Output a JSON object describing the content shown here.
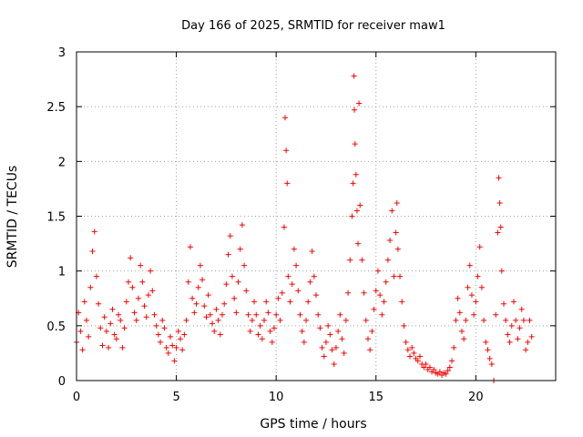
{
  "chart_data": {
    "type": "scatter",
    "title": "Day 166 of 2025, SRMTID for receiver maw1",
    "xlabel": "GPS time / hours",
    "ylabel": "SRMTID / TECUs",
    "xlim": [
      0,
      24
    ],
    "ylim": [
      0,
      3
    ],
    "xticks": [
      0,
      5,
      10,
      15,
      20
    ],
    "xtick_labels": [
      "0",
      "5",
      "10",
      "15",
      "20"
    ],
    "yticks": [
      0,
      0.5,
      1,
      1.5,
      2,
      2.5,
      3
    ],
    "ytick_labels": [
      "0",
      "0.5",
      "1",
      "1.5",
      "2",
      "2.5",
      "3"
    ],
    "grid": true,
    "marker": "plus",
    "color": "#ff0000",
    "series": [
      {
        "name": "SRMTID",
        "points": [
          [
            0.0,
            0.35
          ],
          [
            0.1,
            0.62
          ],
          [
            0.2,
            0.45
          ],
          [
            0.3,
            0.28
          ],
          [
            0.4,
            0.72
          ],
          [
            0.5,
            0.55
          ],
          [
            0.6,
            0.4
          ],
          [
            0.7,
            0.85
          ],
          [
            0.8,
            1.18
          ],
          [
            0.9,
            1.36
          ],
          [
            1.0,
            0.95
          ],
          [
            1.1,
            0.7
          ],
          [
            1.2,
            0.48
          ],
          [
            1.3,
            0.32
          ],
          [
            1.4,
            0.58
          ],
          [
            1.5,
            0.45
          ],
          [
            1.6,
            0.3
          ],
          [
            1.7,
            0.52
          ],
          [
            1.8,
            0.65
          ],
          [
            1.9,
            0.42
          ],
          [
            2.0,
            0.38
          ],
          [
            2.1,
            0.6
          ],
          [
            2.2,
            0.55
          ],
          [
            2.3,
            0.3
          ],
          [
            2.4,
            0.48
          ],
          [
            2.5,
            0.72
          ],
          [
            2.6,
            0.9
          ],
          [
            2.7,
            1.12
          ],
          [
            2.8,
            0.85
          ],
          [
            2.9,
            0.62
          ],
          [
            3.0,
            0.55
          ],
          [
            3.1,
            0.75
          ],
          [
            3.2,
            1.05
          ],
          [
            3.3,
            0.9
          ],
          [
            3.4,
            0.68
          ],
          [
            3.5,
            0.58
          ],
          [
            3.6,
            0.78
          ],
          [
            3.7,
            1.0
          ],
          [
            3.8,
            0.82
          ],
          [
            3.9,
            0.6
          ],
          [
            4.0,
            0.5
          ],
          [
            4.1,
            0.42
          ],
          [
            4.2,
            0.35
          ],
          [
            4.3,
            0.55
          ],
          [
            4.4,
            0.48
          ],
          [
            4.5,
            0.3
          ],
          [
            4.6,
            0.25
          ],
          [
            4.7,
            0.4
          ],
          [
            4.8,
            0.32
          ],
          [
            4.9,
            0.18
          ],
          [
            5.0,
            0.3
          ],
          [
            5.1,
            0.45
          ],
          [
            5.2,
            0.38
          ],
          [
            5.3,
            0.28
          ],
          [
            5.4,
            0.42
          ],
          [
            5.5,
            0.55
          ],
          [
            5.6,
            0.9
          ],
          [
            5.7,
            1.22
          ],
          [
            5.8,
            0.75
          ],
          [
            5.9,
            0.62
          ],
          [
            6.0,
            0.7
          ],
          [
            6.1,
            0.85
          ],
          [
            6.2,
            1.05
          ],
          [
            6.3,
            0.92
          ],
          [
            6.4,
            0.68
          ],
          [
            6.5,
            0.58
          ],
          [
            6.6,
            0.78
          ],
          [
            6.7,
            0.6
          ],
          [
            6.8,
            0.52
          ],
          [
            6.9,
            0.45
          ],
          [
            7.0,
            0.65
          ],
          [
            7.1,
            0.55
          ],
          [
            7.2,
            0.42
          ],
          [
            7.3,
            0.6
          ],
          [
            7.4,
            0.7
          ],
          [
            7.5,
            0.88
          ],
          [
            7.6,
            1.15
          ],
          [
            7.7,
            1.32
          ],
          [
            7.8,
            0.95
          ],
          [
            7.9,
            0.75
          ],
          [
            8.0,
            0.62
          ],
          [
            8.1,
            0.9
          ],
          [
            8.2,
            1.2
          ],
          [
            8.3,
            1.42
          ],
          [
            8.4,
            1.05
          ],
          [
            8.5,
            0.82
          ],
          [
            8.6,
            0.6
          ],
          [
            8.7,
            0.45
          ],
          [
            8.8,
            0.55
          ],
          [
            8.9,
            0.72
          ],
          [
            9.0,
            0.6
          ],
          [
            9.1,
            0.42
          ],
          [
            9.2,
            0.5
          ],
          [
            9.3,
            0.38
          ],
          [
            9.4,
            0.55
          ],
          [
            9.5,
            0.72
          ],
          [
            9.6,
            0.62
          ],
          [
            9.7,
            0.45
          ],
          [
            9.8,
            0.35
          ],
          [
            9.9,
            0.48
          ],
          [
            10.0,
            0.6
          ],
          [
            10.1,
            0.75
          ],
          [
            10.2,
            0.55
          ],
          [
            10.3,
            0.8
          ],
          [
            10.4,
            1.4
          ],
          [
            10.45,
            2.4
          ],
          [
            10.5,
            2.1
          ],
          [
            10.55,
            1.8
          ],
          [
            10.6,
            0.95
          ],
          [
            10.7,
            0.72
          ],
          [
            10.8,
            0.88
          ],
          [
            10.9,
            1.2
          ],
          [
            11.0,
            1.05
          ],
          [
            11.1,
            0.82
          ],
          [
            11.2,
            0.6
          ],
          [
            11.3,
            0.45
          ],
          [
            11.4,
            0.35
          ],
          [
            11.5,
            0.55
          ],
          [
            11.6,
            0.72
          ],
          [
            11.7,
            0.9
          ],
          [
            11.8,
            1.18
          ],
          [
            11.9,
            0.95
          ],
          [
            12.0,
            0.78
          ],
          [
            12.1,
            0.6
          ],
          [
            12.2,
            0.48
          ],
          [
            12.3,
            0.3
          ],
          [
            12.4,
            0.22
          ],
          [
            12.5,
            0.35
          ],
          [
            12.6,
            0.5
          ],
          [
            12.7,
            0.42
          ],
          [
            12.8,
            0.28
          ],
          [
            12.9,
            0.15
          ],
          [
            13.0,
            0.3
          ],
          [
            13.1,
            0.45
          ],
          [
            13.2,
            0.6
          ],
          [
            13.3,
            0.38
          ],
          [
            13.4,
            0.25
          ],
          [
            13.5,
            0.55
          ],
          [
            13.6,
            0.8
          ],
          [
            13.7,
            1.1
          ],
          [
            13.8,
            1.5
          ],
          [
            13.85,
            1.8
          ],
          [
            13.9,
            2.78
          ],
          [
            13.92,
            2.47
          ],
          [
            13.95,
            2.16
          ],
          [
            14.0,
            1.88
          ],
          [
            14.05,
            1.55
          ],
          [
            14.1,
            1.25
          ],
          [
            14.15,
            2.53
          ],
          [
            14.2,
            1.6
          ],
          [
            14.3,
            1.1
          ],
          [
            14.4,
            0.8
          ],
          [
            14.5,
            0.55
          ],
          [
            14.6,
            0.38
          ],
          [
            14.7,
            0.28
          ],
          [
            14.8,
            0.45
          ],
          [
            14.9,
            0.65
          ],
          [
            15.0,
            0.82
          ],
          [
            15.1,
            1.0
          ],
          [
            15.2,
            0.78
          ],
          [
            15.3,
            0.6
          ],
          [
            15.4,
            0.72
          ],
          [
            15.5,
            0.9
          ],
          [
            15.6,
            1.1
          ],
          [
            15.7,
            1.28
          ],
          [
            15.8,
            1.55
          ],
          [
            15.9,
            0.95
          ],
          [
            16.0,
            1.35
          ],
          [
            16.05,
            1.62
          ],
          [
            16.1,
            1.2
          ],
          [
            16.2,
            0.95
          ],
          [
            16.3,
            0.72
          ],
          [
            16.4,
            0.5
          ],
          [
            16.5,
            0.35
          ],
          [
            16.6,
            0.28
          ],
          [
            16.7,
            0.22
          ],
          [
            16.8,
            0.3
          ],
          [
            16.9,
            0.25
          ],
          [
            17.0,
            0.2
          ],
          [
            17.1,
            0.18
          ],
          [
            17.2,
            0.22
          ],
          [
            17.3,
            0.15
          ],
          [
            17.4,
            0.12
          ],
          [
            17.5,
            0.15
          ],
          [
            17.6,
            0.1
          ],
          [
            17.7,
            0.12
          ],
          [
            17.8,
            0.08
          ],
          [
            17.9,
            0.1
          ],
          [
            18.0,
            0.07
          ],
          [
            18.1,
            0.06
          ],
          [
            18.2,
            0.08
          ],
          [
            18.3,
            0.05
          ],
          [
            18.4,
            0.07
          ],
          [
            18.5,
            0.06
          ],
          [
            18.6,
            0.09
          ],
          [
            18.7,
            0.12
          ],
          [
            18.8,
            0.18
          ],
          [
            18.9,
            0.3
          ],
          [
            19.0,
            0.55
          ],
          [
            19.1,
            0.75
          ],
          [
            19.2,
            0.62
          ],
          [
            19.3,
            0.45
          ],
          [
            19.4,
            0.38
          ],
          [
            19.5,
            0.55
          ],
          [
            19.6,
            0.85
          ],
          [
            19.7,
            1.05
          ],
          [
            19.8,
            0.78
          ],
          [
            19.9,
            0.6
          ],
          [
            20.0,
            0.72
          ],
          [
            20.1,
            0.95
          ],
          [
            20.2,
            1.22
          ],
          [
            20.3,
            0.85
          ],
          [
            20.4,
            0.55
          ],
          [
            20.5,
            0.35
          ],
          [
            20.6,
            0.28
          ],
          [
            20.7,
            0.2
          ],
          [
            20.8,
            0.15
          ],
          [
            20.9,
            0.0
          ],
          [
            21.0,
            0.6
          ],
          [
            21.1,
            1.35
          ],
          [
            21.15,
            1.85
          ],
          [
            21.2,
            1.62
          ],
          [
            21.25,
            1.4
          ],
          [
            21.3,
            1.0
          ],
          [
            21.4,
            0.7
          ],
          [
            21.5,
            0.55
          ],
          [
            21.6,
            0.42
          ],
          [
            21.7,
            0.35
          ],
          [
            21.8,
            0.5
          ],
          [
            21.9,
            0.72
          ],
          [
            22.0,
            0.55
          ],
          [
            22.1,
            0.38
          ],
          [
            22.2,
            0.48
          ],
          [
            22.3,
            0.65
          ],
          [
            22.4,
            0.55
          ],
          [
            22.5,
            0.28
          ],
          [
            22.6,
            0.35
          ],
          [
            22.7,
            0.55
          ],
          [
            22.8,
            0.4
          ]
        ]
      }
    ]
  }
}
